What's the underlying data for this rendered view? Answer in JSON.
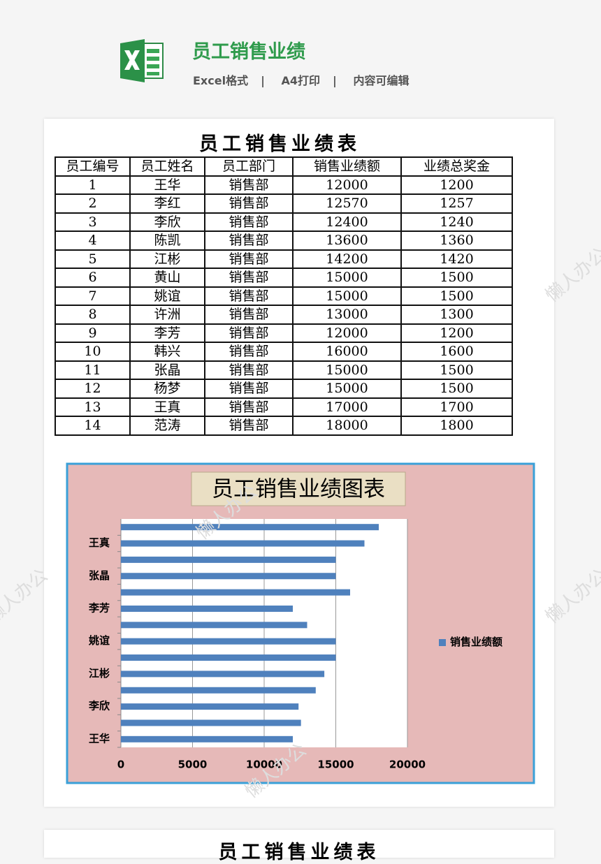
{
  "header": {
    "title": "员工销售业绩",
    "features": [
      "Excel格式",
      "A4打印",
      "内容可编辑"
    ],
    "separator": "|"
  },
  "watermark": "懒人办公",
  "table": {
    "title": "员工销售业绩表",
    "columns": [
      "员工编号",
      "员工姓名",
      "员工部门",
      "销售业绩额",
      "业绩总奖金"
    ],
    "rows": [
      [
        1,
        "王华",
        "销售部",
        12000,
        1200
      ],
      [
        2,
        "李红",
        "销售部",
        12570,
        1257
      ],
      [
        3,
        "李欣",
        "销售部",
        12400,
        1240
      ],
      [
        4,
        "陈凯",
        "销售部",
        13600,
        1360
      ],
      [
        5,
        "江彬",
        "销售部",
        14200,
        1420
      ],
      [
        6,
        "黄山",
        "销售部",
        15000,
        1500
      ],
      [
        7,
        "姚谊",
        "销售部",
        15000,
        1500
      ],
      [
        8,
        "许洲",
        "销售部",
        13000,
        1300
      ],
      [
        9,
        "李芳",
        "销售部",
        12000,
        1200
      ],
      [
        10,
        "韩兴",
        "销售部",
        16000,
        1600
      ],
      [
        11,
        "张晶",
        "销售部",
        15000,
        1500
      ],
      [
        12,
        "杨梦",
        "销售部",
        15000,
        1500
      ],
      [
        13,
        "王真",
        "销售部",
        17000,
        1700
      ],
      [
        14,
        "范涛",
        "销售部",
        18000,
        1800
      ]
    ]
  },
  "chart_data": {
    "type": "barh",
    "title": "员工销售业绩图表",
    "categories": [
      "王华",
      null,
      "李欣",
      null,
      "江彬",
      null,
      "姚谊",
      null,
      "李芳",
      null,
      "张晶",
      null,
      "王真",
      null
    ],
    "series": [
      {
        "name": "销售业绩额",
        "color": "#4f81bd",
        "values": [
          12000,
          12570,
          12400,
          13600,
          14200,
          15000,
          15000,
          13000,
          12000,
          16000,
          15000,
          15000,
          17000,
          18000
        ]
      }
    ],
    "xlim": [
      0,
      20000
    ],
    "xticks": [
      0,
      5000,
      10000,
      15000,
      20000
    ],
    "grid": true,
    "legend": "right"
  },
  "next_page": {
    "title": "员工销售业绩表"
  }
}
